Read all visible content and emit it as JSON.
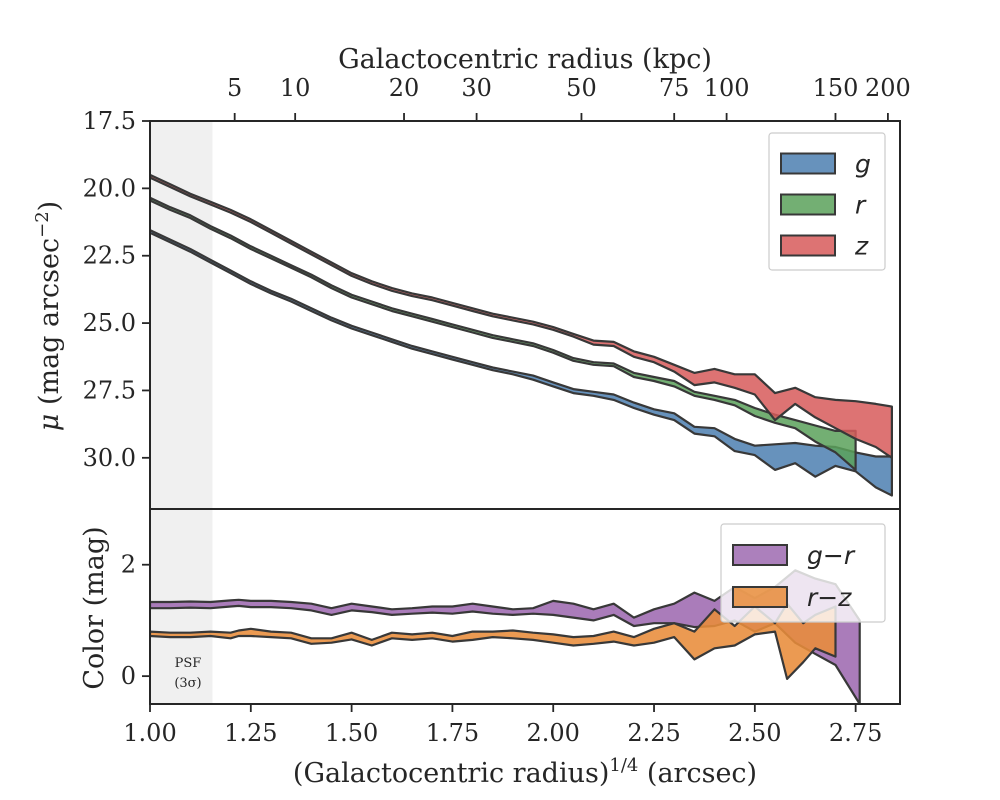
{
  "chart_data": [
    {
      "type": "area",
      "panel": "surface-brightness",
      "xlabel": "(Galactocentric radius)^1/4 (arcsec)",
      "xlabel_parts": {
        "base": "(Galactocentric radius)",
        "sup": "1/4",
        "unit": " (arcsec)"
      },
      "ylabel": "μ (mag arcsec⁻²)",
      "ylabel_parts": {
        "mu": "μ",
        "pre": " (mag arcsec",
        "sup": "−2",
        "post": ")"
      },
      "top_xlabel": "Galactocentric radius (kpc)",
      "xlim": [
        1.0,
        2.86
      ],
      "ylim": [
        31.9,
        17.5
      ],
      "y_inverted": true,
      "yticks": [
        17.5,
        20.0,
        22.5,
        25.0,
        27.5,
        30.0
      ],
      "ytick_labels": [
        "17.5",
        "20.0",
        "22.5",
        "25.0",
        "27.5",
        "30.0"
      ],
      "top_ticks": [
        {
          "label": "5",
          "x": 1.21
        },
        {
          "label": "10",
          "x": 1.36
        },
        {
          "label": "20",
          "x": 1.63
        },
        {
          "label": "30",
          "x": 1.81
        },
        {
          "label": "50",
          "x": 2.07
        },
        {
          "label": "75",
          "x": 2.3
        },
        {
          "label": "100",
          "x": 2.43
        },
        {
          "label": "150",
          "x": 2.7
        },
        {
          "label": "200",
          "x": 2.83
        }
      ],
      "shaded_region": {
        "x": [
          1.0,
          1.155
        ],
        "color": "#f0f0f0"
      },
      "legend": {
        "position": "top-right"
      },
      "series": [
        {
          "name": "g",
          "color": "#4c7fb0",
          "x": [
            1.0,
            1.05,
            1.1,
            1.15,
            1.2,
            1.25,
            1.3,
            1.35,
            1.4,
            1.45,
            1.5,
            1.55,
            1.6,
            1.65,
            1.7,
            1.75,
            1.8,
            1.85,
            1.9,
            1.95,
            2.0,
            2.05,
            2.1,
            2.15,
            2.2,
            2.25,
            2.3,
            2.35,
            2.4,
            2.45,
            2.5,
            2.55,
            2.6,
            2.65,
            2.7,
            2.75,
            2.8,
            2.84
          ],
          "lower": [
            21.55,
            21.9,
            22.25,
            22.65,
            23.05,
            23.45,
            23.8,
            24.1,
            24.45,
            24.8,
            25.1,
            25.35,
            25.6,
            25.85,
            26.05,
            26.25,
            26.45,
            26.65,
            26.8,
            26.95,
            27.2,
            27.45,
            27.55,
            27.65,
            27.95,
            28.2,
            28.35,
            28.85,
            28.9,
            29.3,
            29.55,
            29.5,
            29.45,
            29.55,
            29.6,
            29.8,
            29.95,
            29.95
          ],
          "upper": [
            21.65,
            22.0,
            22.35,
            22.75,
            23.15,
            23.55,
            23.9,
            24.2,
            24.55,
            24.9,
            25.2,
            25.45,
            25.7,
            25.95,
            26.15,
            26.35,
            26.55,
            26.75,
            26.9,
            27.1,
            27.35,
            27.6,
            27.7,
            27.85,
            28.15,
            28.4,
            28.6,
            29.1,
            29.2,
            29.75,
            29.9,
            30.45,
            30.2,
            30.7,
            30.3,
            30.5,
            31.1,
            31.4
          ]
        },
        {
          "name": "r",
          "color": "#5aa15a",
          "x": [
            1.0,
            1.05,
            1.1,
            1.15,
            1.2,
            1.25,
            1.3,
            1.35,
            1.4,
            1.45,
            1.5,
            1.55,
            1.6,
            1.65,
            1.7,
            1.75,
            1.8,
            1.85,
            1.9,
            1.95,
            2.0,
            2.05,
            2.1,
            2.15,
            2.2,
            2.25,
            2.3,
            2.35,
            2.4,
            2.45,
            2.5,
            2.55,
            2.6,
            2.65,
            2.7,
            2.75
          ],
          "lower": [
            20.35,
            20.7,
            21.0,
            21.4,
            21.75,
            22.15,
            22.5,
            22.85,
            23.2,
            23.6,
            23.95,
            24.2,
            24.45,
            24.65,
            24.85,
            25.05,
            25.25,
            25.45,
            25.6,
            25.75,
            26.0,
            26.3,
            26.45,
            26.5,
            26.85,
            27.0,
            27.15,
            27.55,
            27.7,
            27.85,
            28.15,
            28.4,
            28.6,
            28.8,
            29.0,
            29.0
          ],
          "upper": [
            20.45,
            20.8,
            21.1,
            21.5,
            21.85,
            22.25,
            22.6,
            22.95,
            23.3,
            23.7,
            24.05,
            24.3,
            24.55,
            24.75,
            24.95,
            25.15,
            25.35,
            25.55,
            25.7,
            25.85,
            26.1,
            26.4,
            26.55,
            26.6,
            27.0,
            27.15,
            27.35,
            27.7,
            27.85,
            28.05,
            28.45,
            28.7,
            28.9,
            29.4,
            29.8,
            30.45
          ]
        },
        {
          "name": "z",
          "color": "#d75a5a",
          "x": [
            1.0,
            1.05,
            1.1,
            1.15,
            1.2,
            1.25,
            1.3,
            1.35,
            1.4,
            1.45,
            1.5,
            1.55,
            1.6,
            1.65,
            1.7,
            1.75,
            1.8,
            1.85,
            1.9,
            1.95,
            2.0,
            2.05,
            2.1,
            2.15,
            2.2,
            2.25,
            2.3,
            2.35,
            2.4,
            2.45,
            2.5,
            2.55,
            2.6,
            2.65,
            2.7,
            2.75,
            2.8,
            2.84
          ],
          "lower": [
            19.5,
            19.85,
            20.2,
            20.5,
            20.8,
            21.15,
            21.55,
            21.95,
            22.35,
            22.75,
            23.15,
            23.45,
            23.7,
            23.9,
            24.05,
            24.25,
            24.45,
            24.65,
            24.8,
            24.95,
            25.15,
            25.4,
            25.65,
            25.7,
            26.05,
            26.25,
            26.55,
            26.85,
            26.7,
            26.9,
            26.9,
            27.6,
            27.4,
            27.75,
            27.85,
            27.9,
            28.0,
            28.1
          ],
          "upper": [
            19.6,
            19.95,
            20.3,
            20.6,
            20.9,
            21.25,
            21.65,
            22.05,
            22.45,
            22.85,
            23.25,
            23.55,
            23.8,
            24.0,
            24.15,
            24.35,
            24.55,
            24.75,
            24.9,
            25.05,
            25.25,
            25.5,
            25.8,
            25.85,
            26.25,
            26.45,
            26.8,
            27.3,
            27.2,
            27.4,
            27.65,
            28.6,
            28.0,
            28.5,
            28.9,
            29.3,
            29.6,
            30.0
          ]
        }
      ]
    },
    {
      "type": "area",
      "panel": "color",
      "ylabel": "Color (mag)",
      "xlim": [
        1.0,
        2.86
      ],
      "ylim": [
        -0.5,
        3.0
      ],
      "yticks": [
        0,
        2
      ],
      "ytick_labels": [
        "0",
        "2"
      ],
      "xticks": [
        1.0,
        1.25,
        1.5,
        1.75,
        2.0,
        2.25,
        2.5,
        2.75
      ],
      "xtick_labels": [
        "1.00",
        "1.25",
        "1.50",
        "1.75",
        "2.00",
        "2.25",
        "2.50",
        "2.75"
      ],
      "annotation": {
        "line1": "PSF",
        "line2": "(3σ)"
      },
      "legend": {
        "position": "top-right"
      },
      "series": [
        {
          "name": "g − r",
          "legend_label": "g−r",
          "color": "#9e6ab0",
          "x": [
            1.0,
            1.05,
            1.1,
            1.15,
            1.2,
            1.22,
            1.25,
            1.3,
            1.35,
            1.4,
            1.45,
            1.5,
            1.55,
            1.6,
            1.65,
            1.7,
            1.75,
            1.8,
            1.85,
            1.9,
            1.95,
            2.0,
            2.05,
            2.1,
            2.15,
            2.2,
            2.25,
            2.3,
            2.35,
            2.4,
            2.45,
            2.5,
            2.55,
            2.6,
            2.65,
            2.7,
            2.76
          ],
          "lower": [
            1.22,
            1.22,
            1.23,
            1.22,
            1.25,
            1.26,
            1.24,
            1.24,
            1.22,
            1.18,
            1.1,
            1.18,
            1.15,
            1.1,
            1.12,
            1.14,
            1.12,
            1.16,
            1.12,
            1.1,
            1.12,
            1.1,
            1.05,
            1.0,
            1.1,
            0.9,
            0.95,
            0.95,
            0.88,
            0.9,
            1.0,
            0.8,
            0.95,
            0.6,
            0.4,
            0.2,
            -0.5
          ],
          "upper": [
            1.33,
            1.33,
            1.34,
            1.33,
            1.36,
            1.37,
            1.35,
            1.35,
            1.33,
            1.3,
            1.22,
            1.3,
            1.25,
            1.2,
            1.22,
            1.25,
            1.25,
            1.3,
            1.25,
            1.2,
            1.22,
            1.35,
            1.3,
            1.2,
            1.3,
            1.05,
            1.2,
            1.3,
            1.5,
            1.35,
            1.6,
            1.4,
            1.6,
            1.9,
            1.75,
            1.65,
            1.0
          ]
        },
        {
          "name": "r − z",
          "legend_label": "r−z",
          "color": "#e88c3a",
          "x": [
            1.0,
            1.05,
            1.1,
            1.15,
            1.2,
            1.22,
            1.25,
            1.3,
            1.35,
            1.4,
            1.45,
            1.5,
            1.55,
            1.6,
            1.65,
            1.7,
            1.75,
            1.8,
            1.85,
            1.9,
            1.95,
            2.0,
            2.05,
            2.1,
            2.15,
            2.2,
            2.25,
            2.3,
            2.35,
            2.4,
            2.45,
            2.5,
            2.55,
            2.58,
            2.62,
            2.65,
            2.7
          ],
          "lower": [
            0.72,
            0.7,
            0.7,
            0.72,
            0.68,
            0.72,
            0.72,
            0.7,
            0.68,
            0.58,
            0.6,
            0.66,
            0.55,
            0.68,
            0.65,
            0.68,
            0.62,
            0.65,
            0.7,
            0.68,
            0.65,
            0.6,
            0.55,
            0.58,
            0.62,
            0.55,
            0.6,
            0.7,
            0.3,
            0.5,
            0.55,
            0.75,
            0.8,
            -0.05,
            0.25,
            0.5,
            0.35
          ],
          "upper": [
            0.8,
            0.78,
            0.78,
            0.8,
            0.78,
            0.82,
            0.85,
            0.8,
            0.78,
            0.68,
            0.68,
            0.78,
            0.65,
            0.78,
            0.75,
            0.78,
            0.72,
            0.8,
            0.8,
            0.82,
            0.78,
            0.75,
            0.7,
            0.72,
            0.8,
            0.7,
            0.85,
            0.95,
            0.8,
            1.2,
            0.9,
            1.25,
            0.95,
            1.3,
            0.95,
            1.1,
            1.25
          ]
        }
      ]
    }
  ]
}
